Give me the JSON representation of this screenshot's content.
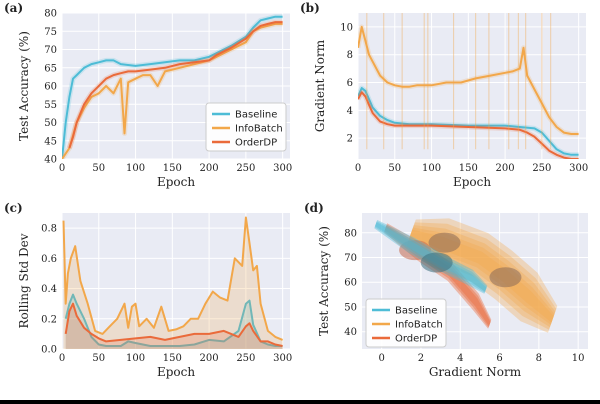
{
  "colors": {
    "baseline": "#4dbcd6",
    "infobatch": "#f2a74a",
    "orderdp": "#ea6a3a",
    "panel_bg": "#e9ebf4",
    "grid": "#ffffff"
  },
  "chart_data": [
    {
      "panel": "(a)",
      "type": "line",
      "xlabel": "Epoch",
      "ylabel": "Test Accuracy (%)",
      "xlim": [
        0,
        310
      ],
      "ylim": [
        40,
        80
      ],
      "xticks": [
        0,
        50,
        100,
        150,
        200,
        250,
        300
      ],
      "yticks": [
        40,
        45,
        50,
        55,
        60,
        65,
        70,
        75,
        80
      ],
      "legend_position": "lower-right",
      "series": [
        {
          "name": "Baseline",
          "key": "baseline",
          "x": [
            0,
            5,
            10,
            15,
            20,
            30,
            40,
            50,
            60,
            70,
            80,
            100,
            120,
            140,
            160,
            180,
            200,
            210,
            230,
            250,
            260,
            270,
            280,
            290,
            300
          ],
          "y": [
            40,
            50,
            57,
            62,
            63,
            65,
            66,
            66.5,
            67,
            67,
            66,
            65.5,
            66,
            66.5,
            67,
            67,
            68,
            69,
            71,
            73.5,
            76,
            78,
            78.5,
            79,
            79
          ]
        },
        {
          "name": "InfoBatch",
          "key": "infobatch",
          "x": [
            0,
            10,
            20,
            30,
            40,
            50,
            60,
            70,
            80,
            85,
            90,
            100,
            110,
            120,
            130,
            140,
            150,
            160,
            180,
            200,
            210,
            230,
            250,
            260,
            270,
            280,
            290,
            300
          ],
          "y": [
            40,
            43,
            50,
            54,
            57,
            58,
            60,
            58,
            62,
            47,
            61,
            62,
            63,
            63,
            60,
            64,
            64.5,
            65,
            66,
            67,
            68,
            70,
            72,
            75,
            76,
            76.5,
            77,
            77
          ]
        },
        {
          "name": "OrderDP",
          "key": "orderdp",
          "x": [
            10,
            15,
            20,
            30,
            40,
            50,
            60,
            70,
            80,
            90,
            100,
            120,
            140,
            160,
            180,
            200,
            210,
            230,
            250,
            260,
            270,
            280,
            290,
            300
          ],
          "y": [
            43,
            46,
            50,
            55,
            58,
            60,
            62,
            63,
            63.5,
            64,
            64,
            64.5,
            65,
            66,
            66.5,
            67,
            68.5,
            70.5,
            73,
            75,
            76.5,
            77,
            77.5,
            77.5
          ]
        }
      ]
    },
    {
      "panel": "(b)",
      "type": "line",
      "xlabel": "Epoch",
      "ylabel": "Gradient Norm",
      "xlim": [
        0,
        310
      ],
      "ylim": [
        0.5,
        11
      ],
      "xticks": [
        0,
        50,
        100,
        150,
        200,
        250,
        300
      ],
      "yticks": [
        2,
        4,
        6,
        8,
        10
      ],
      "series": [
        {
          "name": "Baseline",
          "key": "baseline",
          "x": [
            0,
            5,
            10,
            15,
            20,
            30,
            40,
            50,
            70,
            100,
            150,
            200,
            220,
            240,
            250,
            260,
            270,
            280,
            290,
            300
          ],
          "y": [
            5.0,
            5.6,
            5.4,
            4.8,
            4.2,
            3.6,
            3.3,
            3.1,
            3.0,
            3.0,
            2.9,
            2.9,
            2.8,
            2.7,
            2.4,
            1.8,
            1.2,
            0.9,
            0.8,
            0.8
          ]
        },
        {
          "name": "InfoBatch",
          "key": "infobatch",
          "x": [
            0,
            5,
            10,
            15,
            20,
            30,
            40,
            50,
            60,
            70,
            80,
            100,
            120,
            140,
            160,
            180,
            200,
            210,
            220,
            225,
            230,
            240,
            250,
            260,
            270,
            280,
            290,
            300
          ],
          "y": [
            8.5,
            10.0,
            9.0,
            8.0,
            7.5,
            6.5,
            6.0,
            5.8,
            5.7,
            5.7,
            5.8,
            5.8,
            6.0,
            6.0,
            6.3,
            6.5,
            6.7,
            6.8,
            7.0,
            8.5,
            6.5,
            5.5,
            4.5,
            3.5,
            2.8,
            2.4,
            2.3,
            2.3
          ]
        },
        {
          "name": "OrderDP",
          "key": "orderdp",
          "x": [
            0,
            5,
            10,
            15,
            20,
            30,
            40,
            50,
            70,
            100,
            150,
            200,
            220,
            230,
            240,
            250,
            260,
            270,
            280,
            290,
            300
          ],
          "y": [
            4.8,
            5.3,
            5.0,
            4.4,
            3.8,
            3.2,
            3.0,
            2.9,
            2.9,
            2.9,
            2.8,
            2.7,
            2.6,
            2.4,
            2.1,
            1.6,
            1.1,
            0.8,
            0.6,
            0.5,
            0.5
          ]
        }
      ]
    },
    {
      "panel": "(c)",
      "type": "area",
      "xlabel": "Epoch",
      "ylabel": "Rolling Std Dev",
      "xlim": [
        0,
        310
      ],
      "ylim": [
        0,
        0.9
      ],
      "xticks": [
        0,
        50,
        100,
        150,
        200,
        250,
        300
      ],
      "yticks": [
        0.0,
        0.2,
        0.4,
        0.6,
        0.8
      ],
      "series": [
        {
          "name": "Baseline",
          "key": "baseline",
          "x": [
            5,
            10,
            15,
            20,
            30,
            40,
            50,
            60,
            80,
            90,
            100,
            120,
            140,
            160,
            180,
            200,
            220,
            240,
            250,
            255,
            260,
            270,
            280,
            290,
            300
          ],
          "y": [
            0.2,
            0.3,
            0.36,
            0.3,
            0.2,
            0.08,
            0.03,
            0.02,
            0.02,
            0.05,
            0.04,
            0.02,
            0.02,
            0.02,
            0.03,
            0.06,
            0.05,
            0.12,
            0.3,
            0.32,
            0.16,
            0.05,
            0.03,
            0.02,
            0.02
          ]
        },
        {
          "name": "InfoBatch",
          "key": "infobatch",
          "x": [
            2,
            5,
            8,
            12,
            18,
            25,
            35,
            45,
            55,
            65,
            75,
            85,
            90,
            95,
            100,
            105,
            115,
            125,
            135,
            145,
            155,
            165,
            175,
            185,
            195,
            205,
            215,
            225,
            235,
            245,
            250,
            255,
            260,
            265,
            270,
            280,
            290,
            300
          ],
          "y": [
            0.85,
            0.3,
            0.5,
            0.6,
            0.68,
            0.45,
            0.3,
            0.12,
            0.1,
            0.15,
            0.2,
            0.3,
            0.14,
            0.28,
            0.3,
            0.15,
            0.2,
            0.14,
            0.28,
            0.12,
            0.13,
            0.15,
            0.2,
            0.2,
            0.3,
            0.38,
            0.34,
            0.32,
            0.6,
            0.55,
            0.87,
            0.7,
            0.52,
            0.55,
            0.3,
            0.12,
            0.08,
            0.06
          ]
        },
        {
          "name": "OrderDP",
          "key": "orderdp",
          "x": [
            5,
            10,
            15,
            20,
            30,
            40,
            50,
            60,
            80,
            100,
            120,
            140,
            160,
            180,
            200,
            220,
            240,
            250,
            255,
            260,
            270,
            280,
            290,
            300
          ],
          "y": [
            0.1,
            0.25,
            0.3,
            0.22,
            0.14,
            0.1,
            0.07,
            0.05,
            0.06,
            0.07,
            0.08,
            0.06,
            0.08,
            0.1,
            0.1,
            0.12,
            0.08,
            0.15,
            0.17,
            0.12,
            0.05,
            0.05,
            0.03,
            0.02
          ]
        }
      ]
    },
    {
      "panel": "(d)",
      "type": "density",
      "xlabel": "Gradient Norm",
      "ylabel": "Test Accuracy (%)",
      "xlim": [
        -1,
        10.5
      ],
      "ylim": [
        33,
        88
      ],
      "xticks": [
        0,
        2,
        4,
        6,
        8,
        10
      ],
      "yticks": [
        40,
        50,
        60,
        70,
        80
      ],
      "legend_position": "lower-left",
      "series": [
        {
          "name": "Baseline",
          "key": "baseline",
          "comment": "narrow diagonal band",
          "ridge": [
            [
              -0.3,
              83.5
            ],
            [
              1.5,
              75
            ],
            [
              3,
              68
            ],
            [
              4.5,
              62
            ],
            [
              5.3,
              57
            ]
          ],
          "width": 2.2,
          "peaks": [
            [
              2.8,
              68
            ]
          ]
        },
        {
          "name": "InfoBatch",
          "key": "infobatch",
          "comment": "broad blob",
          "ridge": [
            [
              1.5,
              80
            ],
            [
              3,
              76
            ],
            [
              5,
              70
            ],
            [
              6.2,
              63
            ],
            [
              7.5,
              54
            ],
            [
              8.7,
              45
            ]
          ],
          "width": 7,
          "peaks": [
            [
              6.3,
              62
            ],
            [
              3.2,
              76
            ]
          ]
        },
        {
          "name": "OrderDP",
          "key": "orderdp",
          "comment": "lower-left band",
          "ridge": [
            [
              0.2,
              82
            ],
            [
              2,
              72
            ],
            [
              3.5,
              64
            ],
            [
              4.8,
              52
            ],
            [
              5.5,
              43
            ]
          ],
          "width": 2.4,
          "peaks": [
            [
              1.7,
              73
            ]
          ]
        }
      ]
    }
  ]
}
